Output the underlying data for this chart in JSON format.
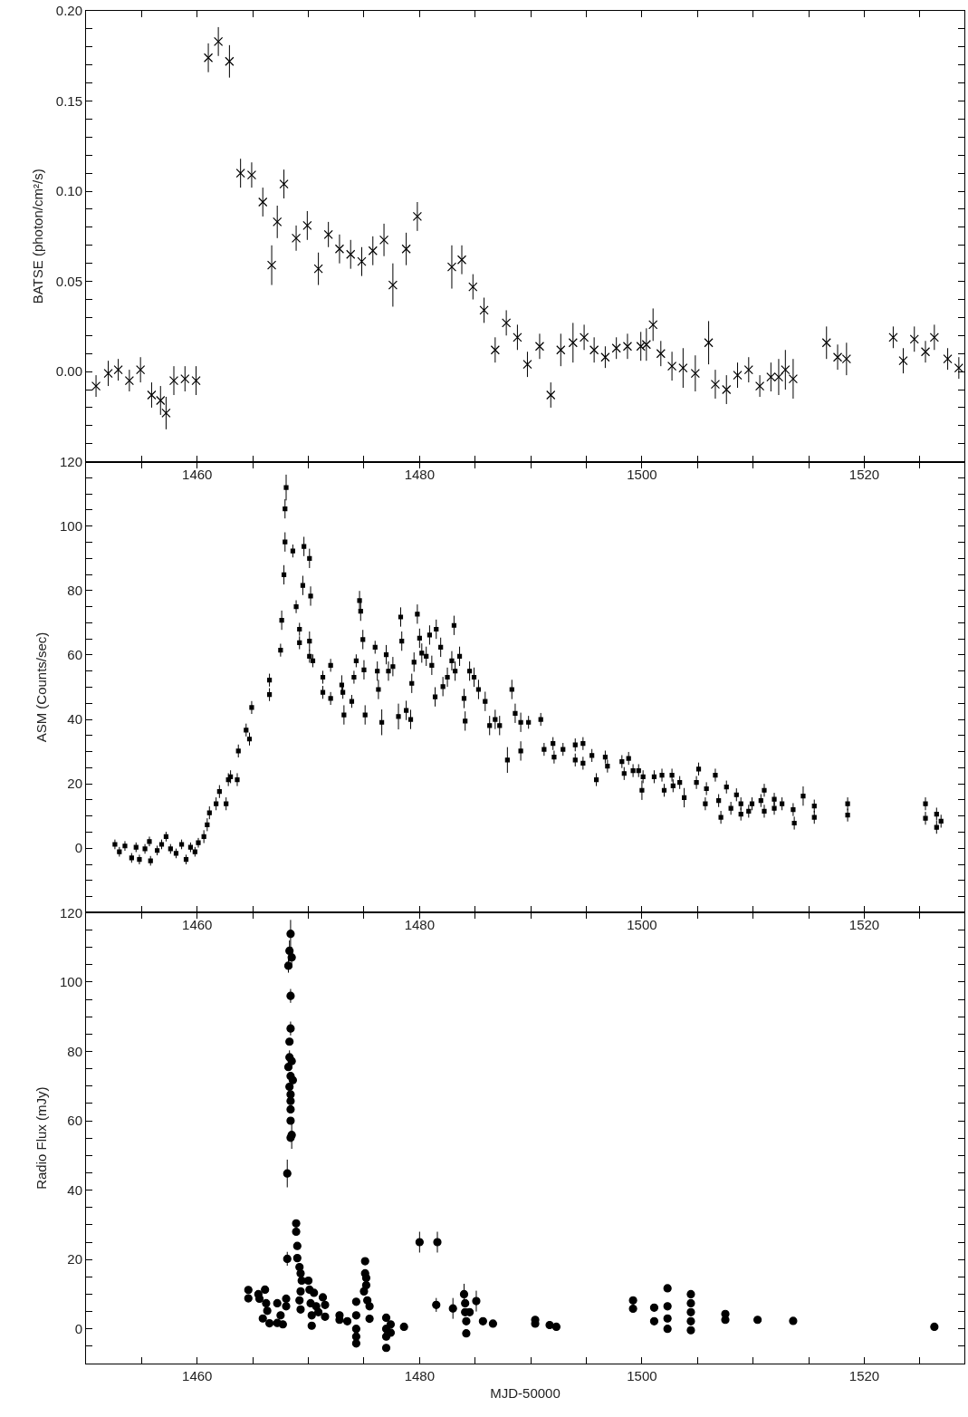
{
  "chart_data": [
    {
      "type": "scatter",
      "ylabel": "BATSE (photon/cm²/s)",
      "marker": "cross",
      "color": "#000000",
      "x": [
        1450.9,
        1452.0,
        1452.9,
        1453.9,
        1454.9,
        1455.9,
        1456.7,
        1457.2,
        1457.9,
        1458.9,
        1459.9,
        1461.0,
        1461.9,
        1462.9,
        1463.9,
        1464.9,
        1465.9,
        1466.7,
        1467.2,
        1467.8,
        1468.9,
        1469.9,
        1470.9,
        1471.8,
        1472.8,
        1473.8,
        1474.8,
        1475.8,
        1476.8,
        1477.6,
        1478.8,
        1479.8,
        1482.9,
        1483.8,
        1484.8,
        1485.8,
        1486.8,
        1487.8,
        1488.8,
        1489.7,
        1490.8,
        1491.8,
        1492.7,
        1493.8,
        1494.8,
        1495.7,
        1496.7,
        1497.7,
        1498.7,
        1499.9,
        1500.4,
        1501.0,
        1501.7,
        1502.7,
        1503.7,
        1504.8,
        1506.0,
        1506.6,
        1507.6,
        1508.6,
        1509.6,
        1510.6,
        1511.6,
        1512.3,
        1512.9,
        1513.6,
        1516.6,
        1517.6,
        1518.4,
        1522.6,
        1523.5,
        1524.5,
        1525.5,
        1526.3,
        1527.5,
        1528.5
      ],
      "values": [
        -0.008,
        -0.001,
        0.001,
        -0.005,
        0.001,
        -0.013,
        -0.016,
        -0.023,
        -0.005,
        -0.004,
        -0.005,
        0.174,
        0.183,
        0.172,
        0.11,
        0.109,
        0.094,
        0.059,
        0.083,
        0.104,
        0.074,
        0.081,
        0.057,
        0.076,
        0.068,
        0.065,
        0.061,
        0.067,
        0.073,
        0.048,
        0.068,
        0.086,
        0.058,
        0.062,
        0.047,
        0.034,
        0.012,
        0.027,
        0.019,
        0.004,
        0.014,
        -0.013,
        0.012,
        0.016,
        0.019,
        0.012,
        0.008,
        0.013,
        0.014,
        0.014,
        0.015,
        0.026,
        0.01,
        0.003,
        0.002,
        -0.001,
        0.016,
        -0.007,
        -0.01,
        -0.002,
        0.001,
        -0.008,
        -0.003,
        -0.003,
        0.001,
        -0.004,
        0.016,
        0.008,
        0.007,
        0.019,
        0.006,
        0.018,
        0.011,
        0.019,
        0.007,
        0.002
      ],
      "errors": [
        0.006,
        0.007,
        0.006,
        0.006,
        0.007,
        0.007,
        0.008,
        0.009,
        0.008,
        0.007,
        0.008,
        0.008,
        0.008,
        0.009,
        0.008,
        0.007,
        0.008,
        0.011,
        0.009,
        0.008,
        0.007,
        0.008,
        0.009,
        0.007,
        0.008,
        0.008,
        0.008,
        0.008,
        0.009,
        0.012,
        0.009,
        0.008,
        0.012,
        0.008,
        0.007,
        0.007,
        0.007,
        0.007,
        0.007,
        0.007,
        0.007,
        0.007,
        0.009,
        0.011,
        0.007,
        0.007,
        0.006,
        0.006,
        0.007,
        0.008,
        0.009,
        0.009,
        0.007,
        0.008,
        0.011,
        0.01,
        0.012,
        0.008,
        0.008,
        0.007,
        0.007,
        0.006,
        0.008,
        0.01,
        0.011,
        0.011,
        0.009,
        0.007,
        0.009,
        0.006,
        0.007,
        0.007,
        0.006,
        0.007,
        0.006,
        0.006
      ],
      "xlim": [
        1450,
        1529
      ],
      "xticks": [
        {
          "value": 1455,
          "label": null
        },
        1460,
        {
          "value": 1465,
          "label": null
        },
        {
          "value": 1470,
          "label": null
        },
        {
          "value": 1475,
          "label": null
        },
        1480,
        {
          "value": 1485,
          "label": null
        },
        {
          "value": 1490,
          "label": null
        },
        {
          "value": 1495,
          "label": null
        },
        1500,
        {
          "value": 1505,
          "label": null
        },
        {
          "value": 1510,
          "label": null
        },
        {
          "value": 1515,
          "label": null
        },
        1520,
        {
          "value": 1525,
          "label": null
        }
      ],
      "ylim": [
        -0.05,
        0.2
      ],
      "yticks": [
        {
          "value": -0.04,
          "label": null
        },
        {
          "value": -0.03,
          "label": null
        },
        {
          "value": -0.02,
          "label": null
        },
        {
          "value": -0.01,
          "label": null
        },
        {
          "value": 0,
          "label": "0.00"
        },
        {
          "value": 0.01,
          "label": null
        },
        {
          "value": 0.02,
          "label": null
        },
        {
          "value": 0.03,
          "label": null
        },
        {
          "value": 0.04,
          "label": null
        },
        {
          "value": 0.05,
          "label": "0.05"
        },
        {
          "value": 0.06,
          "label": null
        },
        {
          "value": 0.07,
          "label": null
        },
        {
          "value": 0.08,
          "label": null
        },
        {
          "value": 0.09,
          "label": null
        },
        {
          "value": 0.1,
          "label": "0.10"
        },
        {
          "value": 0.11,
          "label": null
        },
        {
          "value": 0.12,
          "label": null
        },
        {
          "value": 0.13,
          "label": null
        },
        {
          "value": 0.14,
          "label": null
        },
        {
          "value": 0.15,
          "label": "0.15"
        },
        {
          "value": 0.16,
          "label": null
        },
        {
          "value": 0.17,
          "label": null
        },
        {
          "value": 0.18,
          "label": null
        },
        {
          "value": 0.19,
          "label": null
        },
        {
          "value": 0.2,
          "label": "0.20"
        }
      ]
    },
    {
      "type": "scatter",
      "ylabel": "ASM (Counts/sec)",
      "marker": "square",
      "color": "#000000",
      "x": [
        1452.6,
        1453.0,
        1453.5,
        1454.1,
        1454.5,
        1454.8,
        1455.3,
        1455.7,
        1455.8,
        1456.4,
        1456.8,
        1457.2,
        1457.6,
        1458.1,
        1458.6,
        1459.0,
        1459.4,
        1459.8,
        1460.1,
        1460.6,
        1460.9,
        1461.1,
        1461.7,
        1462.0,
        1462.6,
        1462.8,
        1463.0,
        1463.6,
        1463.7,
        1464.4,
        1464.7,
        1464.9,
        1466.5,
        1466.5,
        1467.5,
        1467.6,
        1467.8,
        1467.9,
        1467.9,
        1468.0,
        1468.6,
        1468.9,
        1469.2,
        1469.2,
        1469.6,
        1469.5,
        1470.1,
        1470.2,
        1470.1,
        1470.1,
        1470.4,
        1471.3,
        1471.3,
        1472.0,
        1472.0,
        1473.0,
        1473.1,
        1473.2,
        1473.9,
        1474.1,
        1474.3,
        1474.6,
        1474.7,
        1474.9,
        1475.0,
        1475.1,
        1476.0,
        1476.2,
        1476.3,
        1476.6,
        1477.0,
        1477.2,
        1477.6,
        1478.1,
        1478.3,
        1478.4,
        1478.8,
        1479.2,
        1479.3,
        1479.5,
        1479.8,
        1480.0,
        1480.2,
        1480.6,
        1480.9,
        1481.1,
        1481.4,
        1481.5,
        1481.9,
        1482.1,
        1482.5,
        1482.9,
        1483.1,
        1483.2,
        1483.6,
        1484.0,
        1484.1,
        1484.5,
        1484.9,
        1485.3,
        1485.9,
        1486.3,
        1486.8,
        1487.2,
        1487.9,
        1488.3,
        1488.6,
        1489.1,
        1489.1,
        1489.8,
        1490.9,
        1491.2,
        1492.0,
        1492.1,
        1492.9,
        1494.0,
        1494.0,
        1494.7,
        1494.7,
        1495.5,
        1495.9,
        1496.7,
        1496.9,
        1498.2,
        1498.4,
        1498.8,
        1499.2,
        1499.7,
        1500.0,
        1500.1,
        1501.1,
        1501.8,
        1502.0,
        1502.7,
        1502.8,
        1503.4,
        1503.8,
        1504.9,
        1505.1,
        1505.7,
        1505.8,
        1506.6,
        1506.9,
        1507.1,
        1507.6,
        1508.0,
        1508.5,
        1508.9,
        1508.9,
        1509.6,
        1509.9,
        1510.7,
        1511.0,
        1511.0,
        1511.9,
        1511.9,
        1512.6,
        1513.6,
        1513.7,
        1514.5,
        1515.5,
        1515.5,
        1518.5,
        1518.5,
        1525.5,
        1525.5,
        1526.5,
        1526.5,
        1526.9
      ],
      "values": [
        1.2,
        -1.1,
        0.7,
        -3.0,
        0.3,
        -3.5,
        -0.2,
        2.1,
        -3.9,
        -0.7,
        1.2,
        3.6,
        -0.2,
        -1.6,
        1.2,
        -3.5,
        0.3,
        -1.1,
        1.7,
        3.6,
        7.3,
        11.0,
        13.8,
        17.6,
        13.8,
        21.3,
        22.2,
        21.3,
        30.2,
        36.7,
        33.9,
        43.7,
        52.2,
        47.7,
        61.5,
        70.8,
        84.9,
        95.1,
        105.4,
        112.0,
        92.3,
        75.0,
        68.0,
        63.8,
        93.7,
        81.6,
        90.0,
        78.3,
        64.3,
        59.6,
        58.2,
        53.1,
        48.4,
        56.8,
        46.5,
        50.7,
        48.4,
        41.4,
        45.6,
        53.1,
        58.2,
        76.9,
        73.6,
        64.8,
        55.4,
        41.4,
        62.4,
        55.0,
        49.3,
        39.1,
        60.1,
        55.0,
        56.4,
        40.9,
        71.8,
        64.3,
        42.8,
        40.0,
        51.2,
        57.8,
        72.7,
        65.2,
        60.6,
        59.6,
        66.2,
        56.8,
        47.0,
        68.0,
        62.4,
        50.2,
        53.1,
        58.2,
        69.2,
        55.0,
        59.6,
        46.5,
        39.5,
        55.0,
        53.1,
        49.3,
        45.6,
        38.1,
        40.0,
        38.1,
        27.4,
        49.3,
        41.9,
        39.1,
        30.2,
        39.1,
        40.0,
        30.7,
        32.5,
        28.3,
        30.7,
        32.1,
        27.4,
        32.5,
        26.4,
        28.8,
        21.3,
        28.3,
        25.5,
        26.9,
        23.2,
        27.9,
        24.1,
        24.1,
        18.0,
        22.2,
        22.2,
        22.7,
        18.0,
        22.7,
        19.4,
        20.4,
        15.7,
        20.4,
        24.6,
        13.8,
        18.5,
        22.7,
        14.8,
        9.6,
        19.0,
        12.4,
        16.6,
        10.6,
        13.8,
        11.5,
        13.8,
        14.8,
        18.0,
        11.5,
        15.2,
        12.4,
        13.8,
        12.0,
        7.8,
        16.2,
        13.1,
        9.6,
        13.8,
        10.3,
        13.8,
        9.3,
        10.6,
        6.5,
        8.4
      ],
      "errors": [
        1.5,
        1.5,
        1.5,
        1.5,
        1.5,
        1.5,
        1.5,
        1.5,
        1.5,
        1.5,
        1.5,
        1.5,
        1.5,
        1.5,
        1.5,
        1.5,
        1.5,
        1.5,
        1.5,
        2,
        2,
        2,
        2,
        2,
        2,
        2,
        2,
        2,
        2,
        2,
        2,
        2,
        2,
        2,
        2,
        3,
        3,
        3,
        3,
        4,
        2,
        2,
        2,
        2,
        3,
        3,
        3,
        3,
        3,
        2,
        2,
        2,
        2,
        2,
        2,
        3,
        2,
        3,
        2,
        2,
        2,
        3,
        3,
        3,
        3,
        3,
        2,
        3,
        3,
        4,
        3,
        3,
        3,
        4,
        3,
        3,
        3,
        3,
        3,
        3,
        3,
        3,
        3,
        3,
        3,
        3,
        3,
        3,
        3,
        3,
        3,
        3,
        3,
        3,
        3,
        3,
        3,
        3,
        3,
        3,
        3,
        3,
        3,
        3,
        4,
        3,
        3,
        3,
        3,
        2,
        2,
        2,
        2,
        2,
        2,
        2,
        2,
        2,
        2,
        2,
        2,
        2,
        2,
        2,
        2,
        2,
        2,
        2,
        3,
        2,
        2,
        2,
        2,
        2,
        2,
        2,
        3,
        2,
        2,
        2,
        2,
        2,
        2,
        2,
        2,
        2,
        2,
        2,
        2,
        2,
        2,
        2,
        2,
        2,
        2,
        2,
        2,
        2,
        2,
        3,
        2,
        2,
        2,
        2,
        2,
        2,
        2,
        2,
        2
      ],
      "xlim": [
        1450,
        1529
      ],
      "xticks": [
        {
          "value": 1455,
          "label": null
        },
        1460,
        {
          "value": 1465,
          "label": null
        },
        {
          "value": 1470,
          "label": null
        },
        {
          "value": 1475,
          "label": null
        },
        1480,
        {
          "value": 1485,
          "label": null
        },
        {
          "value": 1490,
          "label": null
        },
        {
          "value": 1495,
          "label": null
        },
        1500,
        {
          "value": 1505,
          "label": null
        },
        {
          "value": 1510,
          "label": null
        },
        {
          "value": 1515,
          "label": null
        },
        1520,
        {
          "value": 1525,
          "label": null
        }
      ],
      "ylim": [
        -20,
        120
      ],
      "yticks": [
        {
          "value": -15,
          "label": null
        },
        {
          "value": -10,
          "label": null
        },
        {
          "value": -5,
          "label": null
        },
        0,
        {
          "value": 5,
          "label": null
        },
        {
          "value": 10,
          "label": null
        },
        {
          "value": 15,
          "label": null
        },
        20,
        {
          "value": 25,
          "label": null
        },
        {
          "value": 30,
          "label": null
        },
        {
          "value": 35,
          "label": null
        },
        40,
        {
          "value": 45,
          "label": null
        },
        {
          "value": 50,
          "label": null
        },
        {
          "value": 55,
          "label": null
        },
        60,
        {
          "value": 65,
          "label": null
        },
        {
          "value": 70,
          "label": null
        },
        {
          "value": 75,
          "label": null
        },
        80,
        {
          "value": 85,
          "label": null
        },
        {
          "value": 90,
          "label": null
        },
        {
          "value": 95,
          "label": null
        },
        100,
        {
          "value": 105,
          "label": null
        },
        {
          "value": 110,
          "label": null
        },
        {
          "value": 115,
          "label": null
        },
        120
      ]
    },
    {
      "type": "scatter",
      "ylabel": "Radio Flux (mJy)",
      "xlabel": "MJD-50000",
      "marker": "circle",
      "color": "#000000",
      "x": [
        1468.4,
        1468.3,
        1468.5,
        1468.2,
        1468.4,
        1468.4,
        1468.3,
        1468.3,
        1468.5,
        1468.2,
        1468.4,
        1468.6,
        1468.3,
        1468.4,
        1468.4,
        1468.4,
        1468.4,
        1468.5,
        1468.4,
        1468.1,
        1468.9,
        1468.9,
        1469.0,
        1468.1,
        1469.0,
        1469.2,
        1469.3,
        1469.4,
        1469.3,
        1469.2,
        1469.3,
        1464.6,
        1464.6,
        1465.5,
        1465.6,
        1466.1,
        1466.2,
        1465.9,
        1466.5,
        1466.3,
        1467.2,
        1467.2,
        1467.5,
        1467.7,
        1468.0,
        1468.0,
        1470.0,
        1470.1,
        1470.2,
        1470.3,
        1470.3,
        1470.5,
        1470.7,
        1470.9,
        1471.3,
        1471.5,
        1471.5,
        1472.8,
        1472.8,
        1473.5,
        1474.3,
        1474.3,
        1474.3,
        1474.3,
        1474.3,
        1475.1,
        1475.1,
        1475.2,
        1475.2,
        1475.0,
        1475.3,
        1475.5,
        1475.5,
        1477.0,
        1477.0,
        1477.0,
        1477.0,
        1477.4,
        1477.4,
        1478.6,
        1480.0,
        1481.6,
        1481.5,
        1483.0,
        1484.0,
        1484.1,
        1484.1,
        1484.2,
        1484.2,
        1484.5,
        1485.1,
        1485.7,
        1486.6,
        1490.4,
        1490.4,
        1491.7,
        1492.3,
        1499.2,
        1499.2,
        1501.1,
        1501.1,
        1502.3,
        1502.3,
        1502.3,
        1502.3,
        1504.4,
        1504.4,
        1504.4,
        1504.4,
        1504.4,
        1507.5,
        1507.5,
        1510.4,
        1513.6,
        1526.3
      ],
      "values": [
        113.9,
        109.0,
        107.1,
        104.7,
        96.0,
        86.6,
        82.8,
        78.3,
        77.2,
        75.5,
        72.9,
        71.7,
        69.8,
        67.6,
        65.7,
        63.3,
        60.0,
        55.9,
        55.1,
        44.8,
        30.4,
        28.0,
        23.9,
        20.2,
        20.4,
        17.8,
        16.0,
        13.9,
        10.8,
        8.2,
        5.6,
        11.2,
        8.8,
        10.0,
        8.7,
        11.3,
        7.4,
        3.0,
        1.6,
        5.2,
        7.4,
        1.7,
        3.9,
        1.3,
        8.7,
        6.5,
        13.9,
        11.3,
        7.4,
        3.9,
        0.9,
        10.4,
        6.5,
        4.8,
        9.1,
        6.9,
        3.5,
        3.9,
        2.6,
        2.2,
        7.8,
        3.9,
        0.0,
        -2.2,
        -4.2,
        19.5,
        16.0,
        14.7,
        12.6,
        10.8,
        8.2,
        6.5,
        2.9,
        3.2,
        0.0,
        -2.2,
        -5.5,
        1.3,
        -1.1,
        0.6,
        25.0,
        25.0,
        6.9,
        5.9,
        10.0,
        7.4,
        4.8,
        2.2,
        -1.3,
        4.8,
        8.0,
        2.2,
        1.5,
        2.6,
        1.5,
        1.1,
        0.6,
        8.2,
        5.8,
        6.1,
        2.2,
        11.7,
        6.5,
        3.0,
        0.0,
        10.0,
        7.4,
        4.8,
        2.2,
        -0.4,
        4.3,
        2.6,
        2.6,
        2.3,
        0.6
      ],
      "errors": [
        4,
        3,
        3,
        2,
        2,
        2,
        null,
        2,
        null,
        null,
        null,
        null,
        null,
        null,
        null,
        null,
        null,
        4,
        null,
        4,
        null,
        null,
        null,
        2,
        null,
        null,
        null,
        null,
        null,
        null,
        null,
        null,
        null,
        null,
        null,
        null,
        null,
        null,
        null,
        null,
        null,
        null,
        null,
        null,
        null,
        null,
        null,
        null,
        null,
        null,
        null,
        null,
        null,
        null,
        null,
        null,
        null,
        null,
        null,
        null,
        null,
        null,
        null,
        null,
        null,
        null,
        null,
        null,
        null,
        null,
        null,
        null,
        null,
        null,
        null,
        null,
        null,
        null,
        null,
        null,
        3,
        3,
        2,
        3,
        3,
        null,
        null,
        null,
        null,
        null,
        3,
        null,
        null,
        null,
        null,
        null,
        null,
        null,
        null,
        null,
        null,
        null,
        null,
        null,
        null,
        null,
        null,
        null,
        null,
        null,
        null,
        null,
        null,
        null,
        null
      ],
      "xlim": [
        1450,
        1529
      ],
      "xticks": [
        {
          "value": 1455,
          "label": null
        },
        1460,
        {
          "value": 1465,
          "label": null
        },
        {
          "value": 1470,
          "label": null
        },
        {
          "value": 1475,
          "label": null
        },
        1480,
        {
          "value": 1485,
          "label": null
        },
        {
          "value": 1490,
          "label": null
        },
        {
          "value": 1495,
          "label": null
        },
        1500,
        {
          "value": 1505,
          "label": null
        },
        {
          "value": 1510,
          "label": null
        },
        {
          "value": 1515,
          "label": null
        },
        1520,
        {
          "value": 1525,
          "label": null
        }
      ],
      "ylim": [
        -10,
        120
      ],
      "yticks": [
        {
          "value": -5,
          "label": null
        },
        0,
        {
          "value": 5,
          "label": null
        },
        {
          "value": 10,
          "label": null
        },
        {
          "value": 15,
          "label": null
        },
        20,
        {
          "value": 25,
          "label": null
        },
        {
          "value": 30,
          "label": null
        },
        {
          "value": 35,
          "label": null
        },
        40,
        {
          "value": 45,
          "label": null
        },
        {
          "value": 50,
          "label": null
        },
        {
          "value": 55,
          "label": null
        },
        60,
        {
          "value": 65,
          "label": null
        },
        {
          "value": 70,
          "label": null
        },
        {
          "value": 75,
          "label": null
        },
        80,
        {
          "value": 85,
          "label": null
        },
        {
          "value": 90,
          "label": null
        },
        {
          "value": 95,
          "label": null
        },
        100,
        {
          "value": 105,
          "label": null
        },
        {
          "value": 110,
          "label": null
        },
        {
          "value": 115,
          "label": null
        },
        120
      ]
    }
  ]
}
